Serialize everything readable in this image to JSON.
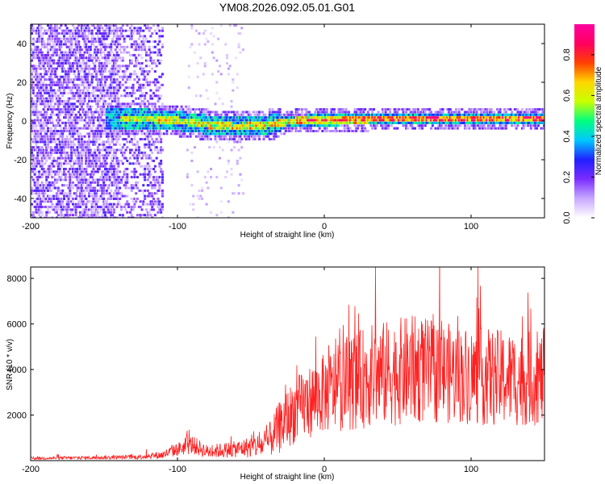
{
  "title": "YM08.2026.092.05.01.G01",
  "chart_data": [
    {
      "type": "heatmap",
      "title": "YM08.2026.092.05.01.G01",
      "xlabel": "Height of straight line (km)",
      "ylabel": "Frequency (Hz)",
      "xlim": [
        -200,
        150
      ],
      "ylim": [
        -50,
        50
      ],
      "x_ticks": [
        -200,
        -100,
        0,
        100
      ],
      "x_tick_labels": [
        "-200",
        "-100",
        "0",
        "100"
      ],
      "y_ticks": [
        -40,
        -20,
        0,
        20,
        40
      ],
      "y_tick_labels": [
        "-40",
        "-20",
        "0",
        "20",
        "40"
      ],
      "description_band": {
        "center_frequency": [
          {
            "x": -140,
            "f": 1
          },
          {
            "x": -120,
            "f": 1
          },
          {
            "x": -100,
            "f": 0
          },
          {
            "x": -80,
            "f": -2
          },
          {
            "x": -60,
            "f": -3
          },
          {
            "x": -40,
            "f": -2
          },
          {
            "x": -20,
            "f": 0
          },
          {
            "x": 0,
            "f": 0.5
          },
          {
            "x": 50,
            "f": 1
          },
          {
            "x": 100,
            "f": 1
          },
          {
            "x": 150,
            "f": 1
          }
        ],
        "max_amplitude_region": [
          -20,
          150
        ],
        "noise_region": [
          -200,
          -110
        ]
      },
      "colorbar": {
        "label": "Normalized spectral amplitude",
        "range": [
          0,
          0.95
        ],
        "ticks": [
          0.0,
          0.2,
          0.4,
          0.6,
          0.8
        ],
        "tick_labels": [
          "0.0",
          "0.2",
          "0.4",
          "0.6",
          "0.8"
        ],
        "colors": [
          "#ffffff",
          "#c8a8ff",
          "#7b2dff",
          "#2020ff",
          "#00c8ff",
          "#00ff80",
          "#c8ff00",
          "#ffd700",
          "#ff4000",
          "#ff0060",
          "#ff00a0"
        ]
      }
    },
    {
      "type": "line",
      "xlabel": "Height of straight line (km)",
      "ylabel": "SNR (10 * v/v)",
      "xlim": [
        -200,
        150
      ],
      "ylim": [
        0,
        8500
      ],
      "x_ticks": [
        -200,
        -100,
        0,
        100
      ],
      "x_tick_labels": [
        "-200",
        "-100",
        "0",
        "100"
      ],
      "y_ticks": [
        2000,
        4000,
        6000,
        8000
      ],
      "y_tick_labels": [
        "2000",
        "4000",
        "6000",
        "8000"
      ],
      "color": "#ff2020",
      "envelope": [
        {
          "x": -200,
          "base": 100,
          "amp": 100
        },
        {
          "x": -130,
          "base": 150,
          "amp": 150
        },
        {
          "x": -110,
          "base": 250,
          "amp": 300
        },
        {
          "x": -100,
          "base": 500,
          "amp": 500
        },
        {
          "x": -90,
          "base": 700,
          "amp": 700
        },
        {
          "x": -80,
          "base": 400,
          "amp": 500
        },
        {
          "x": -60,
          "base": 500,
          "amp": 600
        },
        {
          "x": -40,
          "base": 700,
          "amp": 1000
        },
        {
          "x": -30,
          "base": 1500,
          "amp": 2000
        },
        {
          "x": -20,
          "base": 2200,
          "amp": 2400
        },
        {
          "x": -5,
          "base": 2800,
          "amp": 2800
        },
        {
          "x": 10,
          "base": 3200,
          "amp": 3200
        },
        {
          "x": 30,
          "base": 3700,
          "amp": 3800
        },
        {
          "x": 60,
          "base": 4000,
          "amp": 4000
        },
        {
          "x": 90,
          "base": 3800,
          "amp": 3600
        },
        {
          "x": 120,
          "base": 3600,
          "amp": 3600
        },
        {
          "x": 150,
          "base": 3600,
          "amp": 3400
        }
      ]
    }
  ]
}
